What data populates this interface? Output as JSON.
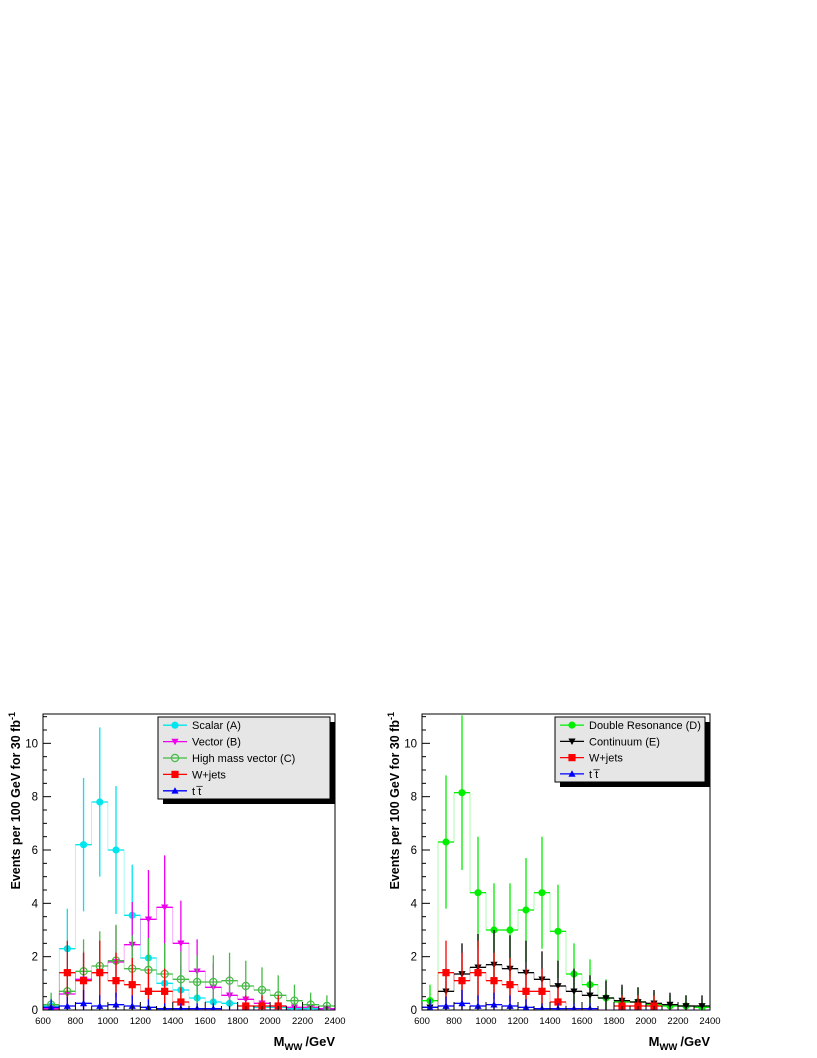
{
  "chart_data": [
    {
      "type": "histogram",
      "xlabel": "M",
      "xlabel_sub": "WW",
      "xlabel_unit": "/GeV",
      "ylabel": "Events per 100 GeV for 30 fb",
      "ylabel_sup": "-1",
      "xlim": [
        600,
        2400
      ],
      "ylim": [
        0,
        11.1
      ],
      "x_ticks": [
        600,
        800,
        1000,
        1200,
        1400,
        1600,
        1800,
        2000,
        2200,
        2400
      ],
      "y_ticks": [
        0,
        2,
        4,
        6,
        8,
        10
      ],
      "bin_edges": [
        600,
        700,
        800,
        900,
        1000,
        1100,
        1200,
        1300,
        1400,
        1500,
        1600,
        1700,
        1800,
        1900,
        2000,
        2100,
        2200,
        2300,
        2400
      ],
      "legend_position": "top-right",
      "series": [
        {
          "name": "Scalar (A)",
          "color": "#00e5ee",
          "marker": "circle-filled",
          "values": [
            0.15,
            2.3,
            6.2,
            7.8,
            6.0,
            3.55,
            1.95,
            1.0,
            0.75,
            0.45,
            0.3,
            0.25,
            0.15,
            0.1,
            0.1,
            0.05,
            0.05,
            0.05
          ],
          "errors": [
            0.4,
            1.5,
            2.5,
            2.8,
            2.4,
            1.9,
            1.4,
            1.0,
            0.9,
            0.7,
            0.55,
            0.5,
            0.4,
            0.3,
            0.3,
            0.2,
            0.2,
            0.2
          ]
        },
        {
          "name": "Vector (B)",
          "color": "#ee00ee",
          "marker": "triangle-down-filled",
          "values": [
            0.05,
            0.6,
            1.15,
            1.4,
            1.8,
            2.45,
            3.4,
            3.85,
            2.5,
            1.45,
            0.85,
            0.55,
            0.4,
            0.25,
            0.15,
            0.1,
            0.1,
            0.05
          ],
          "errors": [
            0.25,
            0.75,
            1.05,
            1.2,
            1.35,
            1.6,
            1.85,
            1.95,
            1.6,
            1.2,
            0.9,
            0.75,
            0.65,
            0.5,
            0.4,
            0.3,
            0.3,
            0.2
          ]
        },
        {
          "name": "High mass vector (C)",
          "color": "#44bb44",
          "marker": "circle-open",
          "values": [
            0.2,
            0.7,
            1.45,
            1.65,
            1.85,
            1.55,
            1.5,
            1.35,
            1.15,
            1.05,
            1.05,
            1.1,
            0.9,
            0.75,
            0.55,
            0.35,
            0.2,
            0.15
          ],
          "errors": [
            0.45,
            0.85,
            1.2,
            1.3,
            1.35,
            1.25,
            1.2,
            1.15,
            1.05,
            1.0,
            1.0,
            1.05,
            0.95,
            0.85,
            0.75,
            0.6,
            0.45,
            0.4
          ]
        },
        {
          "name": "W+jets",
          "color": "#ff0000",
          "marker": "square-filled",
          "values": [
            0.0,
            1.4,
            1.1,
            1.4,
            1.1,
            0.95,
            0.7,
            0.7,
            0.3,
            0.0,
            0.0,
            0.0,
            0.15,
            0.15,
            0.15,
            0.0,
            0.0,
            0.0
          ],
          "errors": [
            0.0,
            1.2,
            1.05,
            1.2,
            1.05,
            1.0,
            0.85,
            0.85,
            0.55,
            0.0,
            0.0,
            0.0,
            0.4,
            0.4,
            0.4,
            0.0,
            0.0,
            0.0
          ]
        },
        {
          "name": "t t̅",
          "color": "#0000ff",
          "marker": "triangle-up-filled",
          "values": [
            0.1,
            0.15,
            0.25,
            0.15,
            0.2,
            0.15,
            0.1,
            0.05,
            0.05,
            0.05,
            0.05,
            0.0,
            0.0,
            0.0,
            0.0,
            0.0,
            0.0,
            0.0
          ],
          "errors": [
            0.3,
            0.35,
            0.5,
            0.4,
            0.45,
            0.4,
            0.3,
            0.2,
            0.2,
            0.2,
            0.2,
            0.0,
            0.0,
            0.0,
            0.0,
            0.0,
            0.0,
            0.0
          ]
        }
      ]
    },
    {
      "type": "histogram",
      "xlabel": "M",
      "xlabel_sub": "WW",
      "xlabel_unit": "/GeV",
      "ylabel": "Events per 100 GeV for 30  fb",
      "ylabel_sup": "-1",
      "xlim": [
        600,
        2400
      ],
      "ylim": [
        0,
        11.1
      ],
      "x_ticks": [
        600,
        800,
        1000,
        1200,
        1400,
        1600,
        1800,
        2000,
        2200,
        2400
      ],
      "y_ticks": [
        0,
        2,
        4,
        6,
        8,
        10
      ],
      "bin_edges": [
        600,
        700,
        800,
        900,
        1000,
        1100,
        1200,
        1300,
        1400,
        1500,
        1600,
        1700,
        1800,
        1900,
        2000,
        2100,
        2200,
        2300,
        2400
      ],
      "legend_position": "top-right",
      "series": [
        {
          "name": "Double Resonance (D)",
          "color": "#00ee00",
          "marker": "circle-filled",
          "values": [
            0.35,
            6.3,
            8.15,
            4.4,
            3.0,
            3.0,
            3.75,
            4.4,
            2.95,
            1.35,
            0.95,
            0.45,
            0.3,
            0.3,
            0.2,
            0.15,
            0.15,
            0.1
          ],
          "errors": [
            0.6,
            2.5,
            2.9,
            2.1,
            1.75,
            1.75,
            1.95,
            2.1,
            1.75,
            1.15,
            0.95,
            0.7,
            0.55,
            0.55,
            0.45,
            0.4,
            0.4,
            0.3
          ]
        },
        {
          "name": "Continuum (E)",
          "color": "#000000",
          "marker": "triangle-down-filled",
          "values": [
            0.1,
            0.7,
            1.35,
            1.6,
            1.7,
            1.55,
            1.4,
            1.15,
            0.9,
            0.7,
            0.55,
            0.45,
            0.35,
            0.3,
            0.25,
            0.2,
            0.15,
            0.15
          ],
          "errors": [
            0.3,
            0.85,
            1.15,
            1.25,
            1.3,
            1.25,
            1.2,
            1.05,
            0.95,
            0.85,
            0.75,
            0.65,
            0.6,
            0.55,
            0.5,
            0.45,
            0.4,
            0.4
          ]
        },
        {
          "name": "W+jets",
          "color": "#ff0000",
          "marker": "square-filled",
          "values": [
            0.0,
            1.4,
            1.1,
            1.4,
            1.1,
            0.95,
            0.7,
            0.7,
            0.3,
            0.0,
            0.0,
            0.0,
            0.15,
            0.15,
            0.15,
            0.0,
            0.0,
            0.0
          ],
          "errors": [
            0.0,
            1.2,
            1.05,
            1.2,
            1.05,
            1.0,
            0.85,
            0.85,
            0.55,
            0.0,
            0.0,
            0.0,
            0.4,
            0.4,
            0.4,
            0.0,
            0.0,
            0.0
          ]
        },
        {
          "name": "t t̅",
          "color": "#0000ff",
          "marker": "triangle-up-filled",
          "values": [
            0.1,
            0.15,
            0.25,
            0.15,
            0.2,
            0.15,
            0.1,
            0.05,
            0.05,
            0.05,
            0.05,
            0.0,
            0.0,
            0.0,
            0.0,
            0.0,
            0.0,
            0.0
          ],
          "errors": [
            0.3,
            0.35,
            0.5,
            0.4,
            0.45,
            0.4,
            0.3,
            0.2,
            0.2,
            0.2,
            0.2,
            0.0,
            0.0,
            0.0,
            0.0,
            0.0,
            0.0,
            0.0
          ]
        }
      ]
    }
  ]
}
